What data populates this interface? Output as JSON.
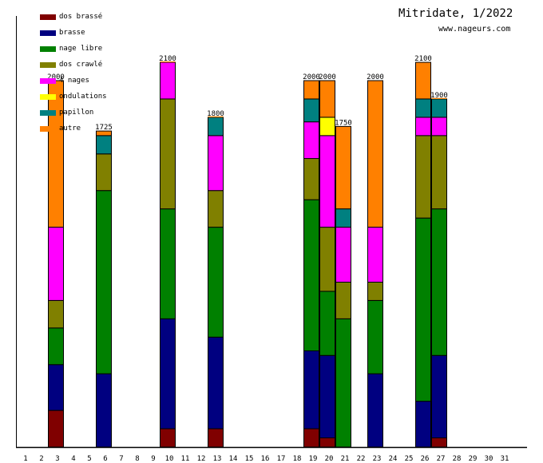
{
  "header": {
    "title": "Mitridate, 1/2022",
    "subtitle": "www.nageurs.com"
  },
  "chart_data": {
    "type": "bar",
    "stacked": true,
    "title": "Mitridate, 1/2022",
    "subtitle": "www.nageurs.com",
    "xlabel": "",
    "ylabel": "",
    "ylim": [
      0,
      2350
    ],
    "grid": false,
    "legend_position": "top-left",
    "categories": [
      "1",
      "2",
      "3",
      "4",
      "5",
      "6",
      "7",
      "8",
      "9",
      "10",
      "11",
      "12",
      "13",
      "14",
      "15",
      "16",
      "17",
      "18",
      "19",
      "20",
      "21",
      "22",
      "23",
      "24",
      "25",
      "26",
      "27",
      "28",
      "29",
      "30",
      "31"
    ],
    "series": [
      {
        "name": "dos brassé",
        "color": "#800000",
        "values": [
          0,
          200,
          0,
          0,
          0,
          0,
          0,
          0,
          100,
          0,
          0,
          100,
          0,
          0,
          0,
          0,
          0,
          100,
          50,
          0,
          0,
          0,
          0,
          0,
          0,
          50,
          0,
          0,
          0,
          0,
          0
        ]
      },
      {
        "name": "brasse",
        "color": "#000080",
        "values": [
          0,
          250,
          0,
          0,
          400,
          0,
          0,
          0,
          600,
          0,
          0,
          500,
          0,
          0,
          0,
          0,
          0,
          425,
          450,
          0,
          0,
          400,
          0,
          0,
          250,
          450,
          0,
          0,
          0,
          0,
          0
        ]
      },
      {
        "name": "nage libre",
        "color": "#008000",
        "values": [
          0,
          200,
          0,
          0,
          1000,
          0,
          0,
          0,
          600,
          0,
          0,
          600,
          0,
          0,
          0,
          0,
          0,
          825,
          350,
          700,
          0,
          400,
          0,
          0,
          1000,
          800,
          0,
          0,
          0,
          0,
          0
        ]
      },
      {
        "name": "dos crawlé",
        "color": "#808000",
        "values": [
          0,
          150,
          0,
          0,
          200,
          0,
          0,
          0,
          600,
          0,
          0,
          200,
          0,
          0,
          0,
          0,
          0,
          225,
          350,
          200,
          0,
          100,
          0,
          0,
          450,
          400,
          0,
          0,
          0,
          0,
          0
        ]
      },
      {
        "name": "4 nages",
        "color": "#ff00ff",
        "values": [
          0,
          400,
          0,
          0,
          0,
          0,
          0,
          0,
          200,
          0,
          0,
          300,
          0,
          0,
          0,
          0,
          0,
          200,
          500,
          300,
          0,
          300,
          0,
          0,
          100,
          100,
          0,
          0,
          0,
          0,
          0
        ]
      },
      {
        "name": "ondulations",
        "color": "#ffff00",
        "values": [
          0,
          0,
          0,
          0,
          0,
          0,
          0,
          0,
          0,
          0,
          0,
          0,
          0,
          0,
          0,
          0,
          0,
          0,
          100,
          0,
          0,
          0,
          0,
          0,
          0,
          0,
          0,
          0,
          0,
          0,
          0
        ]
      },
      {
        "name": "papillon",
        "color": "#008080",
        "values": [
          0,
          0,
          0,
          0,
          100,
          0,
          0,
          0,
          0,
          0,
          0,
          100,
          0,
          0,
          0,
          0,
          0,
          125,
          0,
          100,
          0,
          0,
          0,
          0,
          100,
          100,
          0,
          0,
          0,
          0,
          0
        ]
      },
      {
        "name": "autre",
        "color": "#ff8000",
        "values": [
          0,
          800,
          0,
          0,
          25,
          0,
          0,
          0,
          0,
          0,
          0,
          0,
          0,
          0,
          0,
          0,
          0,
          100,
          200,
          450,
          0,
          800,
          0,
          0,
          200,
          0,
          0,
          0,
          0,
          0,
          0
        ]
      }
    ],
    "totals": [
      0,
      2000,
      0,
      0,
      1725,
      0,
      0,
      0,
      2100,
      0,
      0,
      1800,
      0,
      0,
      0,
      0,
      0,
      2000,
      2000,
      1750,
      0,
      2000,
      0,
      0,
      2100,
      1900,
      0,
      0,
      0,
      0,
      0
    ],
    "total_labels": {
      "2": "2000",
      "5": "1725",
      "9": "2100",
      "12": "1800",
      "18": "2000",
      "19": "2000",
      "20": "1750",
      "22": "2000",
      "25": "2100",
      "26": "1900"
    }
  }
}
